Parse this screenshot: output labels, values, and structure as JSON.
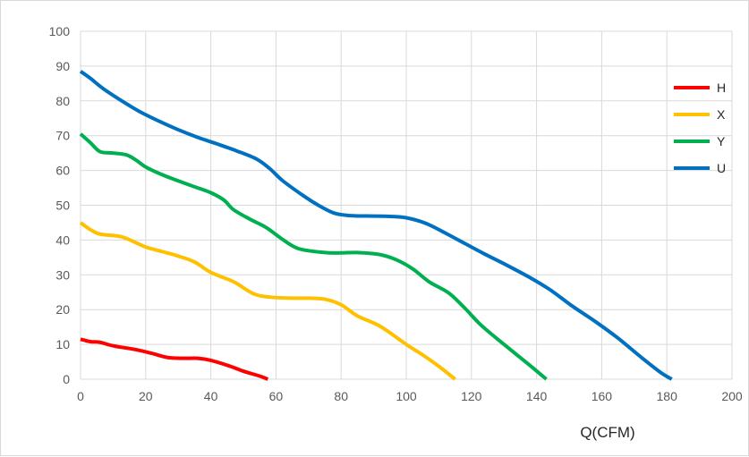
{
  "chart_data": {
    "type": "line",
    "title": "",
    "xlabel": "Q(CFM)",
    "ylabel": "",
    "xlim": [
      0,
      200
    ],
    "ylim": [
      0,
      100
    ],
    "xticks": [
      "0",
      "20",
      "40",
      "60",
      "80",
      "100",
      "120",
      "140",
      "160",
      "180",
      "200"
    ],
    "yticks": [
      "0",
      "10",
      "20",
      "30",
      "40",
      "50",
      "60",
      "70",
      "80",
      "90",
      "100"
    ],
    "grid": true,
    "legend_position": "right",
    "series": [
      {
        "name": "H",
        "color": "#ff0000",
        "points": [
          [
            0,
            11.5
          ],
          [
            3,
            10.8
          ],
          [
            6,
            10.6
          ],
          [
            10,
            9.6
          ],
          [
            17,
            8.5
          ],
          [
            22,
            7.4
          ],
          [
            27,
            6.2
          ],
          [
            32,
            6.0
          ],
          [
            36,
            6.0
          ],
          [
            40,
            5.4
          ],
          [
            46,
            3.7
          ],
          [
            50,
            2.3
          ],
          [
            55,
            0.9
          ],
          [
            57.5,
            0
          ]
        ]
      },
      {
        "name": "X",
        "color": "#ffc000",
        "points": [
          [
            0,
            45
          ],
          [
            3,
            43
          ],
          [
            6,
            41.7
          ],
          [
            11,
            41.2
          ],
          [
            14,
            40.5
          ],
          [
            20,
            38
          ],
          [
            25,
            36.7
          ],
          [
            30,
            35.4
          ],
          [
            35,
            33.7
          ],
          [
            40,
            30.7
          ],
          [
            47,
            28
          ],
          [
            53,
            24.6
          ],
          [
            58,
            23.6
          ],
          [
            65,
            23.3
          ],
          [
            70,
            23.3
          ],
          [
            75,
            23
          ],
          [
            80,
            21.4
          ],
          [
            85,
            18.2
          ],
          [
            92,
            15.2
          ],
          [
            100,
            10
          ],
          [
            105,
            7
          ],
          [
            110,
            3.7
          ],
          [
            115,
            0
          ]
        ]
      },
      {
        "name": "Y",
        "color": "#00b050",
        "points": [
          [
            0,
            70.5
          ],
          [
            3,
            68
          ],
          [
            6,
            65.4
          ],
          [
            10,
            65
          ],
          [
            14,
            64.5
          ],
          [
            17,
            63
          ],
          [
            20,
            61
          ],
          [
            25,
            58.8
          ],
          [
            30,
            57
          ],
          [
            35,
            55.3
          ],
          [
            40,
            53.6
          ],
          [
            44,
            51.5
          ],
          [
            47,
            48.7
          ],
          [
            52,
            46
          ],
          [
            57,
            43.6
          ],
          [
            62,
            40.2
          ],
          [
            67,
            37.5
          ],
          [
            75,
            36.4
          ],
          [
            80,
            36.3
          ],
          [
            85,
            36.4
          ],
          [
            92,
            35.8
          ],
          [
            97,
            34.3
          ],
          [
            102,
            31.7
          ],
          [
            107,
            28
          ],
          [
            113,
            24.8
          ],
          [
            118,
            20.4
          ],
          [
            123,
            15.5
          ],
          [
            130,
            10
          ],
          [
            137,
            4.7
          ],
          [
            143,
            0
          ]
        ]
      },
      {
        "name": "U",
        "color": "#0070c0",
        "points": [
          [
            0,
            88.5
          ],
          [
            3,
            86.5
          ],
          [
            7,
            83.5
          ],
          [
            13,
            79.8
          ],
          [
            18,
            77
          ],
          [
            24,
            74.2
          ],
          [
            30,
            71.7
          ],
          [
            36,
            69.5
          ],
          [
            42,
            67.6
          ],
          [
            48,
            65.6
          ],
          [
            54,
            63.3
          ],
          [
            58,
            60.6
          ],
          [
            62,
            57.1
          ],
          [
            68,
            53
          ],
          [
            73,
            50
          ],
          [
            78,
            47.7
          ],
          [
            83,
            47
          ],
          [
            88,
            46.9
          ],
          [
            95,
            46.8
          ],
          [
            100,
            46.4
          ],
          [
            106,
            44.8
          ],
          [
            112,
            42
          ],
          [
            118,
            39
          ],
          [
            124,
            36
          ],
          [
            131,
            32.7
          ],
          [
            138,
            29.2
          ],
          [
            144,
            25.8
          ],
          [
            151,
            21
          ],
          [
            158,
            16.6
          ],
          [
            165,
            11.8
          ],
          [
            172,
            6.4
          ],
          [
            178,
            2
          ],
          [
            181.5,
            0
          ]
        ]
      }
    ]
  }
}
